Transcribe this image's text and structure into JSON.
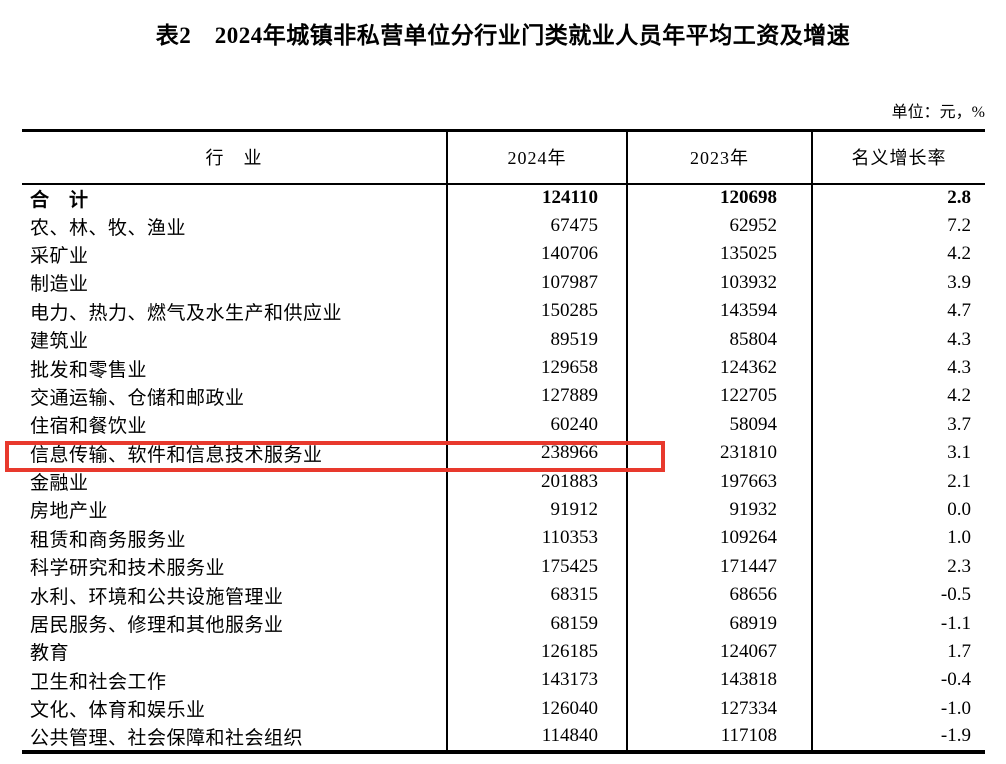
{
  "title": "表2　2024年城镇非私营单位分行业门类就业人员年平均工资及增速",
  "unit_note": "单位：元，%",
  "table": {
    "columns": [
      "行　业",
      "2024年",
      "2023年",
      "名义增长率"
    ],
    "rows": [
      {
        "industry": "合　计",
        "y2024": "124110",
        "y2023": "120698",
        "growth": "2.8",
        "bold": true
      },
      {
        "industry": "农、林、牧、渔业",
        "y2024": "67475",
        "y2023": "62952",
        "growth": "7.2"
      },
      {
        "industry": "采矿业",
        "y2024": "140706",
        "y2023": "135025",
        "growth": "4.2"
      },
      {
        "industry": "制造业",
        "y2024": "107987",
        "y2023": "103932",
        "growth": "3.9"
      },
      {
        "industry": "电力、热力、燃气及水生产和供应业",
        "y2024": "150285",
        "y2023": "143594",
        "growth": "4.7"
      },
      {
        "industry": "建筑业",
        "y2024": "89519",
        "y2023": "85804",
        "growth": "4.3"
      },
      {
        "industry": "批发和零售业",
        "y2024": "129658",
        "y2023": "124362",
        "growth": "4.3"
      },
      {
        "industry": "交通运输、仓储和邮政业",
        "y2024": "127889",
        "y2023": "122705",
        "growth": "4.2"
      },
      {
        "industry": "住宿和餐饮业",
        "y2024": "60240",
        "y2023": "58094",
        "growth": "3.7"
      },
      {
        "industry": "信息传输、软件和信息技术服务业",
        "y2024": "238966",
        "y2023": "231810",
        "growth": "3.1",
        "highlighted": true
      },
      {
        "industry": "金融业",
        "y2024": "201883",
        "y2023": "197663",
        "growth": "2.1"
      },
      {
        "industry": "房地产业",
        "y2024": "91912",
        "y2023": "91932",
        "growth": "0.0"
      },
      {
        "industry": "租赁和商务服务业",
        "y2024": "110353",
        "y2023": "109264",
        "growth": "1.0"
      },
      {
        "industry": "科学研究和技术服务业",
        "y2024": "175425",
        "y2023": "171447",
        "growth": "2.3"
      },
      {
        "industry": "水利、环境和公共设施管理业",
        "y2024": "68315",
        "y2023": "68656",
        "growth": "-0.5"
      },
      {
        "industry": "居民服务、修理和其他服务业",
        "y2024": "68159",
        "y2023": "68919",
        "growth": "-1.1"
      },
      {
        "industry": "教育",
        "y2024": "126185",
        "y2023": "124067",
        "growth": "1.7"
      },
      {
        "industry": "卫生和社会工作",
        "y2024": "143173",
        "y2023": "143818",
        "growth": "-0.4"
      },
      {
        "industry": "文化、体育和娱乐业",
        "y2024": "126040",
        "y2023": "127334",
        "growth": "-1.0"
      },
      {
        "industry": "公共管理、社会保障和社会组织",
        "y2024": "114840",
        "y2023": "117108",
        "growth": "-1.9"
      }
    ]
  },
  "highlight": {
    "target_row": "信息传输、软件和信息技术服务业",
    "color": "#e8392d"
  }
}
